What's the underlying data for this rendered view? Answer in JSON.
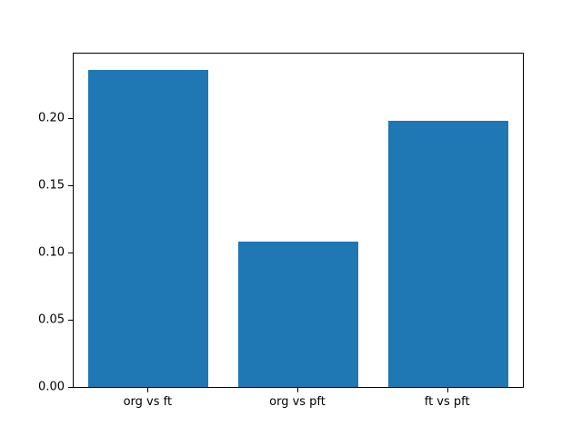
{
  "chart_data": {
    "type": "bar",
    "categories": [
      "org vs ft",
      "org vs pft",
      "ft vs pft"
    ],
    "values": [
      0.236,
      0.108,
      0.198
    ],
    "title": "",
    "xlabel": "",
    "ylabel": "",
    "ylim": [
      0,
      0.248
    ],
    "yticks": [
      0.0,
      0.05,
      0.1,
      0.15,
      0.2
    ],
    "ytick_labels": [
      "0.00",
      "0.05",
      "0.10",
      "0.15",
      "0.20"
    ],
    "bar_color": "#1f77b4",
    "background_color": "#ffffff",
    "spine_color": "#000000",
    "bar_width_fraction": 0.8,
    "grid": false,
    "legend": null
  }
}
